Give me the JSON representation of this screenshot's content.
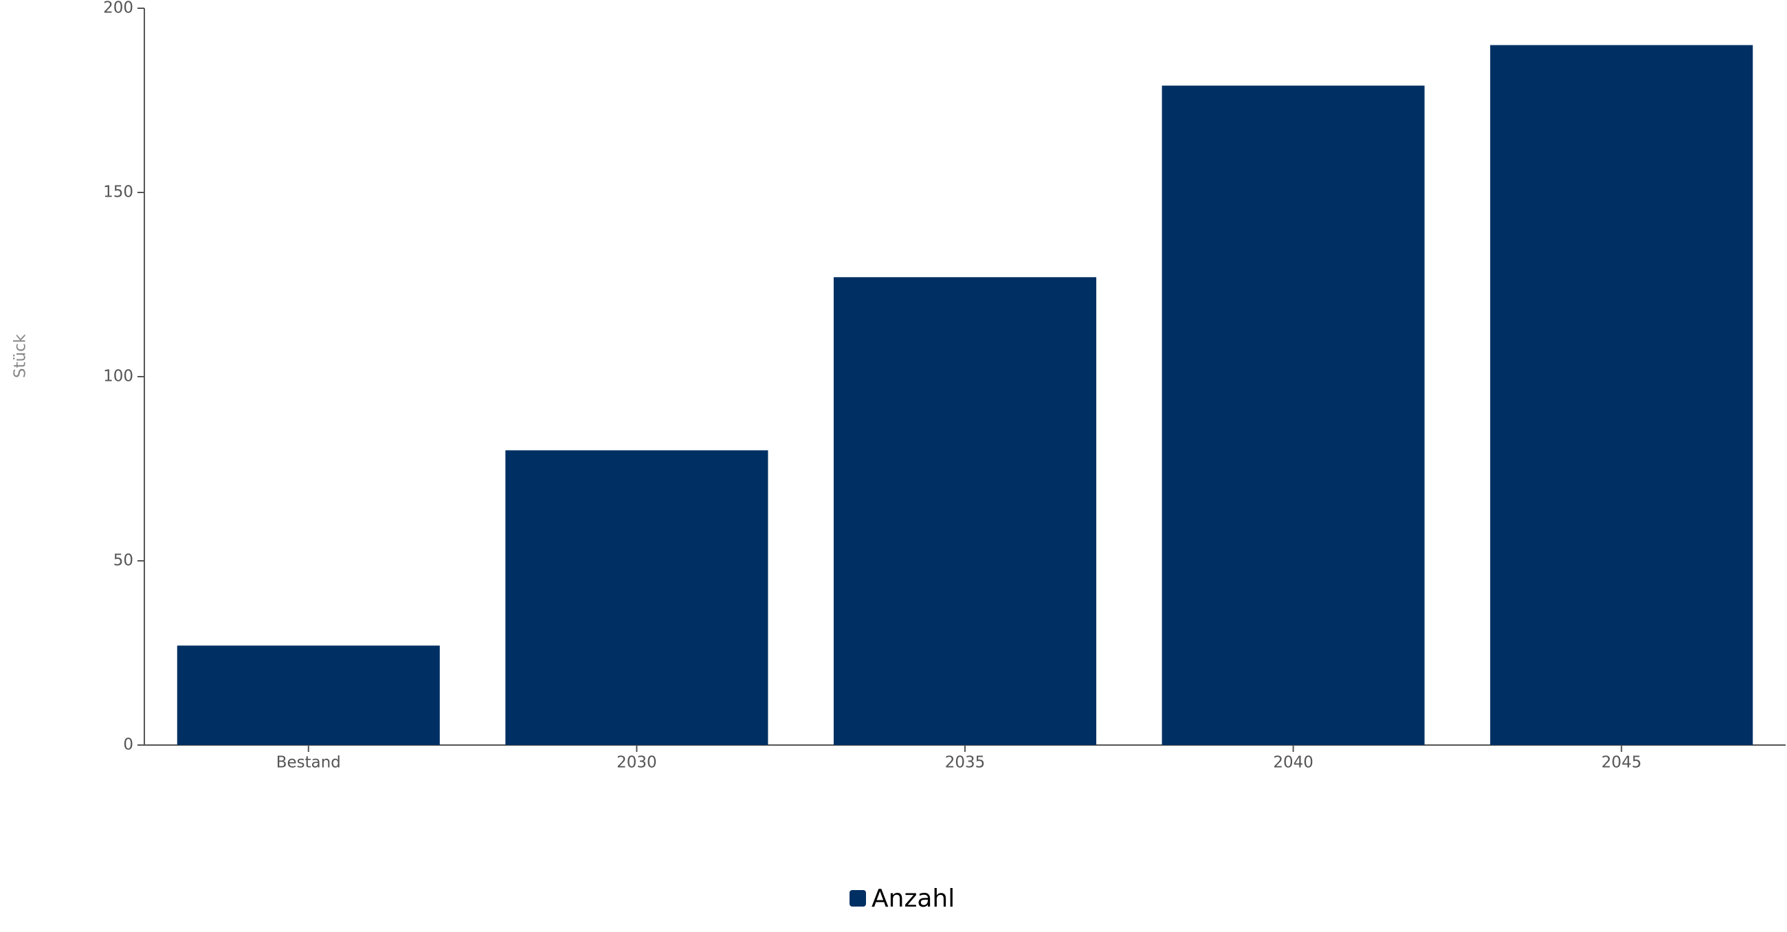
{
  "chart_data": {
    "type": "bar",
    "y_label": "Stück",
    "categories": [
      "Bestand",
      "2030",
      "2035",
      "2040",
      "2045"
    ],
    "series": [
      {
        "name": "Anzahl",
        "color": "#003063",
        "values": [
          27,
          80,
          127,
          179,
          190
        ]
      }
    ],
    "ylim": [
      0,
      200
    ],
    "yticks": [
      0,
      50,
      100,
      150,
      200
    ],
    "grid": false,
    "legend": "bottom"
  }
}
